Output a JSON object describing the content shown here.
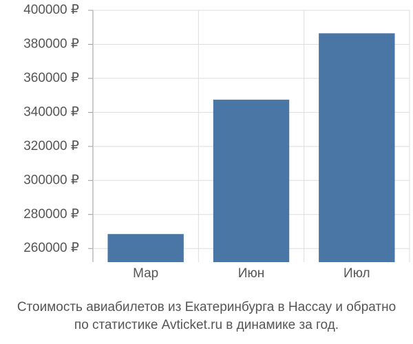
{
  "chart_data": {
    "type": "bar",
    "title": [
      "Стоимость авиабилетов из Екатеринбурга в Нассау и обратно",
      "по статистике Avticket.ru в динамике за год."
    ],
    "categories": [
      "Мар",
      "Июн",
      "Июл"
    ],
    "values": [
      268500,
      347500,
      386500
    ],
    "color": "#4a76a6",
    "ylim": [
      252000,
      400000
    ],
    "yticks": [
      {
        "value": 260000,
        "label": "260000 ₽"
      },
      {
        "value": 280000,
        "label": "280000 ₽"
      },
      {
        "value": 300000,
        "label": "300000 ₽"
      },
      {
        "value": 320000,
        "label": "320000 ₽"
      },
      {
        "value": 340000,
        "label": "340000 ₽"
      },
      {
        "value": 360000,
        "label": "360000 ₽"
      },
      {
        "value": 380000,
        "label": "380000 ₽"
      },
      {
        "value": 400000,
        "label": "400000 ₽"
      }
    ],
    "grid": true
  }
}
